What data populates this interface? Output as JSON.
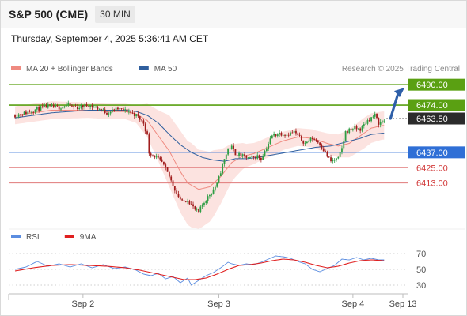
{
  "header": {
    "title": "S&P 500 (CME)",
    "timeframe": "30 MIN"
  },
  "timestamp": "Thursday, September 4, 2025 5:36:41 AM CET",
  "colors": {
    "ma20": "#ef8a80",
    "ma50": "#2f5f9e",
    "up": "#2e9e44",
    "down": "#a01c1c",
    "resistance": "#5aa012",
    "support": "#e07a7a",
    "pivot": "#2f6fd6",
    "rsi": "#5b8de0",
    "rsi_ma": "#e02020"
  },
  "chart_data": [
    {
      "type": "candlestick",
      "legend": [
        {
          "label": "MA 20 + Bollinger Bands",
          "color": "#ef8a80"
        },
        {
          "label": "MA 50",
          "color": "#2f5f9e"
        }
      ],
      "source": "Research © 2025 Trading Central",
      "x_ticks": [
        "Sep 2",
        "Sep 3",
        "Sep 4",
        "Sep 13"
      ],
      "ylim": [
        6380,
        6500
      ],
      "current_price": "6463.50",
      "levels": [
        {
          "label": "6490.00",
          "value": 6490,
          "kind": "resistance"
        },
        {
          "label": "6474.00",
          "value": 6474,
          "kind": "resistance"
        },
        {
          "label": "6437.00",
          "value": 6437,
          "kind": "pivot"
        },
        {
          "label": "6425.00",
          "value": 6425,
          "kind": "support"
        },
        {
          "label": "6413.00",
          "value": 6413,
          "kind": "support"
        }
      ],
      "path_anchors": [
        [
          0,
          6466
        ],
        [
          6,
          6468
        ],
        [
          12,
          6471
        ],
        [
          18,
          6473
        ],
        [
          24,
          6472
        ],
        [
          28,
          6474
        ],
        [
          34,
          6472
        ],
        [
          40,
          6474
        ],
        [
          46,
          6471
        ],
        [
          50,
          6468
        ],
        [
          56,
          6471
        ],
        [
          62,
          6469
        ],
        [
          66,
          6466
        ],
        [
          70,
          6460
        ],
        [
          72,
          6450
        ],
        [
          73,
          6437
        ],
        [
          76,
          6434
        ],
        [
          80,
          6429
        ],
        [
          84,
          6418
        ],
        [
          88,
          6405
        ],
        [
          91,
          6398
        ],
        [
          94,
          6400
        ],
        [
          96,
          6396
        ],
        [
          98,
          6392
        ],
        [
          100,
          6390
        ],
        [
          102,
          6396
        ],
        [
          106,
          6404
        ],
        [
          110,
          6412
        ],
        [
          113,
          6427
        ],
        [
          116,
          6440
        ],
        [
          118,
          6441
        ],
        [
          120,
          6436
        ],
        [
          124,
          6434
        ],
        [
          128,
          6432
        ],
        [
          132,
          6434
        ],
        [
          134,
          6432
        ],
        [
          136,
          6438
        ],
        [
          138,
          6444
        ],
        [
          140,
          6450
        ],
        [
          144,
          6452
        ],
        [
          148,
          6451
        ],
        [
          152,
          6453
        ],
        [
          154,
          6450
        ],
        [
          156,
          6447
        ],
        [
          158,
          6444
        ],
        [
          162,
          6448
        ],
        [
          166,
          6444
        ],
        [
          170,
          6434
        ],
        [
          172,
          6430
        ],
        [
          176,
          6432
        ],
        [
          178,
          6440
        ],
        [
          180,
          6453
        ],
        [
          184,
          6456
        ],
        [
          188,
          6455
        ],
        [
          192,
          6462
        ],
        [
          196,
          6466
        ],
        [
          198,
          6460
        ],
        [
          201,
          6462
        ]
      ],
      "ma20_anchors": [
        [
          0,
          6466
        ],
        [
          10,
          6468
        ],
        [
          20,
          6470
        ],
        [
          30,
          6470
        ],
        [
          40,
          6470
        ],
        [
          50,
          6469
        ],
        [
          60,
          6469
        ],
        [
          66,
          6467
        ],
        [
          72,
          6462
        ],
        [
          78,
          6450
        ],
        [
          84,
          6438
        ],
        [
          90,
          6422
        ],
        [
          94,
          6413
        ],
        [
          100,
          6408
        ],
        [
          106,
          6410
        ],
        [
          112,
          6418
        ],
        [
          118,
          6429
        ],
        [
          124,
          6434
        ],
        [
          130,
          6436
        ],
        [
          138,
          6441
        ],
        [
          146,
          6446
        ],
        [
          154,
          6449
        ],
        [
          162,
          6448
        ],
        [
          170,
          6444
        ],
        [
          176,
          6442
        ],
        [
          182,
          6444
        ],
        [
          188,
          6450
        ],
        [
          194,
          6456
        ],
        [
          200,
          6458
        ]
      ],
      "ma50_anchors": [
        [
          0,
          6464
        ],
        [
          10,
          6466
        ],
        [
          20,
          6468
        ],
        [
          30,
          6469
        ],
        [
          40,
          6470
        ],
        [
          50,
          6470
        ],
        [
          60,
          6470
        ],
        [
          66,
          6469
        ],
        [
          72,
          6466
        ],
        [
          78,
          6460
        ],
        [
          84,
          6451
        ],
        [
          90,
          6443
        ],
        [
          96,
          6437
        ],
        [
          102,
          6433
        ],
        [
          108,
          6431
        ],
        [
          114,
          6430
        ],
        [
          120,
          6432
        ],
        [
          126,
          6432
        ],
        [
          132,
          6433
        ],
        [
          140,
          6435
        ],
        [
          148,
          6437
        ],
        [
          156,
          6439
        ],
        [
          164,
          6441
        ],
        [
          172,
          6442
        ],
        [
          180,
          6445
        ],
        [
          188,
          6448
        ],
        [
          194,
          6451
        ],
        [
          200,
          6452
        ]
      ],
      "band_width_anchors": [
        [
          0,
          7
        ],
        [
          20,
          7
        ],
        [
          40,
          6
        ],
        [
          60,
          6
        ],
        [
          66,
          7
        ],
        [
          72,
          13
        ],
        [
          78,
          20
        ],
        [
          84,
          28
        ],
        [
          90,
          32
        ],
        [
          96,
          33
        ],
        [
          102,
          30
        ],
        [
          108,
          26
        ],
        [
          114,
          19
        ],
        [
          120,
          13
        ],
        [
          126,
          9
        ],
        [
          132,
          8
        ],
        [
          140,
          8
        ],
        [
          148,
          7
        ],
        [
          156,
          7
        ],
        [
          164,
          7
        ],
        [
          170,
          8
        ],
        [
          176,
          9
        ],
        [
          182,
          11
        ],
        [
          190,
          12
        ],
        [
          200,
          11
        ]
      ]
    },
    {
      "type": "line",
      "legend": [
        {
          "label": "RSI",
          "color": "#5b8de0"
        },
        {
          "label": "9MA",
          "color": "#e02020"
        }
      ],
      "ylim": [
        20,
        80
      ],
      "y_ticks": [
        "70",
        "50",
        "30"
      ],
      "rsi_anchors": [
        [
          0,
          50
        ],
        [
          6,
          53
        ],
        [
          12,
          60
        ],
        [
          18,
          54
        ],
        [
          24,
          57
        ],
        [
          30,
          53
        ],
        [
          36,
          57
        ],
        [
          42,
          52
        ],
        [
          48,
          56
        ],
        [
          54,
          51
        ],
        [
          60,
          53
        ],
        [
          66,
          49
        ],
        [
          70,
          44
        ],
        [
          74,
          42
        ],
        [
          78,
          45
        ],
        [
          82,
          38
        ],
        [
          86,
          41
        ],
        [
          90,
          33
        ],
        [
          94,
          39
        ],
        [
          96,
          30
        ],
        [
          100,
          36
        ],
        [
          104,
          42
        ],
        [
          108,
          46
        ],
        [
          112,
          52
        ],
        [
          116,
          59
        ],
        [
          118,
          57
        ],
        [
          122,
          55
        ],
        [
          126,
          57
        ],
        [
          130,
          56
        ],
        [
          134,
          59
        ],
        [
          138,
          63
        ],
        [
          142,
          67
        ],
        [
          146,
          66
        ],
        [
          150,
          64
        ],
        [
          154,
          60
        ],
        [
          158,
          57
        ],
        [
          162,
          50
        ],
        [
          166,
          47
        ],
        [
          170,
          51
        ],
        [
          174,
          55
        ],
        [
          178,
          63
        ],
        [
          182,
          62
        ],
        [
          186,
          65
        ],
        [
          190,
          62
        ],
        [
          194,
          64
        ],
        [
          198,
          62
        ],
        [
          201,
          62
        ]
      ],
      "rsi_ma_anchors": [
        [
          0,
          48
        ],
        [
          10,
          52
        ],
        [
          20,
          55
        ],
        [
          30,
          56
        ],
        [
          40,
          55
        ],
        [
          50,
          54
        ],
        [
          60,
          52
        ],
        [
          68,
          49
        ],
        [
          76,
          45
        ],
        [
          84,
          41
        ],
        [
          92,
          37
        ],
        [
          98,
          37
        ],
        [
          104,
          39
        ],
        [
          110,
          44
        ],
        [
          116,
          50
        ],
        [
          122,
          55
        ],
        [
          128,
          56
        ],
        [
          134,
          58
        ],
        [
          140,
          61
        ],
        [
          146,
          63
        ],
        [
          152,
          62
        ],
        [
          158,
          59
        ],
        [
          164,
          55
        ],
        [
          170,
          52
        ],
        [
          176,
          54
        ],
        [
          182,
          58
        ],
        [
          188,
          61
        ],
        [
          194,
          62
        ],
        [
          201,
          61
        ]
      ]
    }
  ]
}
